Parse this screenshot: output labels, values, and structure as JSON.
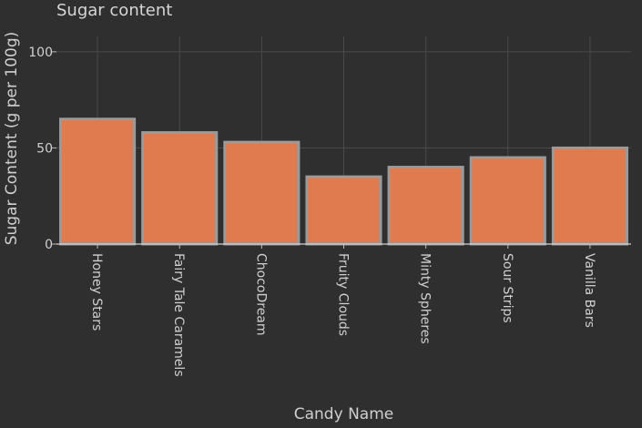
{
  "chart_data": {
    "type": "bar",
    "title": "Sugar content",
    "xlabel": "Candy Name",
    "ylabel": "Sugar Content (g per 100g)",
    "categories": [
      "Honey Stars",
      "Fairy Tale Caramels",
      "ChocoDream",
      "Fruity Clouds",
      "Minty Spheres",
      "Sour Strips",
      "Vanilla Bars"
    ],
    "values": [
      65,
      58,
      53,
      35,
      40,
      45,
      50
    ],
    "ylim": [
      0,
      108
    ],
    "yticks": [
      0,
      50,
      100
    ],
    "grid": true,
    "bar_color": "#e07a4f",
    "bar_edge_color": "#9a9a9a",
    "background_color": "#2f2f2f",
    "grid_color": "#4a4a4a"
  }
}
